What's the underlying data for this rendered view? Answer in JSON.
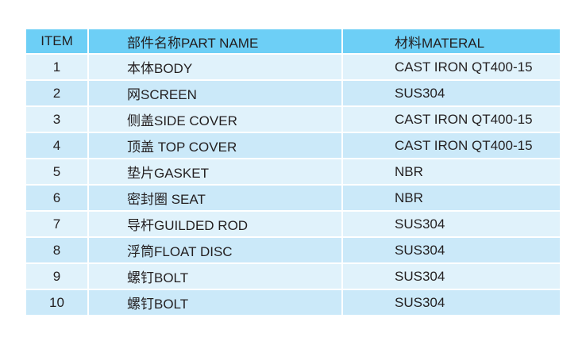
{
  "headers": [
    "ITEM",
    "部件名称PART NAME",
    "材料MATERAL"
  ],
  "rows": [
    [
      "1",
      "本体BODY",
      "CAST IRON QT400-15"
    ],
    [
      "2",
      "网SCREEN",
      "SUS304"
    ],
    [
      "3",
      "侧盖SIDE COVER",
      "CAST IRON QT400-15"
    ],
    [
      "4",
      "顶盖 TOP COVER",
      "CAST IRON QT400-15"
    ],
    [
      "5",
      "垫片GASKET",
      "NBR"
    ],
    [
      "6",
      "密封圈 SEAT",
      "NBR"
    ],
    [
      "7",
      "导杆GUILDED ROD",
      "SUS304"
    ],
    [
      "8",
      "浮筒FLOAT DISC",
      "SUS304"
    ],
    [
      "9",
      "螺钉BOLT",
      "SUS304"
    ],
    [
      "10",
      "螺钉BOLT",
      "SUS304"
    ]
  ],
  "colors": {
    "header": "#6dcff6",
    "row_light": "#e0f2fb",
    "row_dark": "#cbe9f9"
  }
}
